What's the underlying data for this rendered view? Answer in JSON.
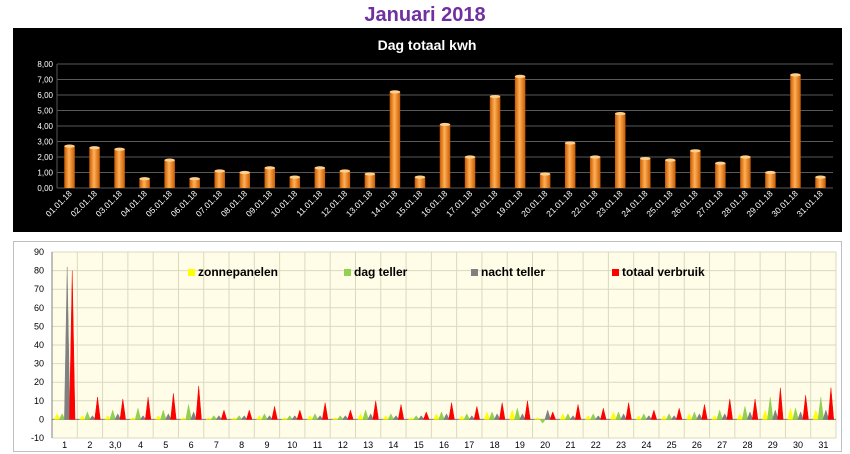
{
  "page": {
    "title": "Januari 2018"
  },
  "chart_data": [
    {
      "type": "bar",
      "title": "Dag totaal kwh",
      "categories": [
        "01.01.18",
        "02.01.18",
        "03.01.18",
        "04.01.18",
        "05.01.18",
        "06.01.18",
        "07.01.18",
        "08.01.18",
        "09.01.18",
        "10.01.18",
        "11.01.18",
        "12.01.18",
        "13.01.18",
        "14.01.18",
        "15.01.18",
        "16.01.18",
        "17.01.18",
        "18.01.18",
        "19.01.18",
        "20.01.18",
        "21.01.18",
        "22.01.18",
        "23.01.18",
        "24.01.18",
        "25.01.18",
        "26.01.18",
        "27.01.18",
        "28.01.18",
        "29.01.18",
        "30.01.18",
        "31.01.18"
      ],
      "values": [
        2.7,
        2.6,
        2.5,
        0.6,
        1.8,
        0.6,
        1.1,
        1.0,
        1.3,
        0.7,
        1.3,
        1.1,
        0.9,
        6.2,
        0.7,
        4.1,
        2.0,
        5.9,
        7.2,
        0.9,
        2.9,
        2.0,
        4.8,
        1.9,
        1.8,
        2.4,
        1.6,
        2.0,
        1.0,
        7.3,
        0.7
      ],
      "ylim": [
        0,
        8
      ],
      "yticks": [
        "0,00",
        "1,00",
        "2,00",
        "3,00",
        "4,00",
        "5,00",
        "6,00",
        "7,00",
        "8,00"
      ],
      "grid": true,
      "colors": {
        "bar": "#f28c28",
        "background": "#000000",
        "grid": "#595959",
        "text": "#ffffff"
      }
    },
    {
      "type": "area",
      "ylim": [
        -10,
        90
      ],
      "yticks": [
        "-10",
        "0",
        "10",
        "20",
        "30",
        "40",
        "50",
        "60",
        "70",
        "80",
        "90"
      ],
      "categories": [
        "1",
        "2",
        "3,0",
        "4",
        "5",
        "6",
        "7",
        "8",
        "9",
        "10",
        "11",
        "12",
        "13",
        "14",
        "15",
        "16",
        "17",
        "18",
        "19",
        "20",
        "21",
        "22",
        "23",
        "24",
        "25",
        "26",
        "27",
        "28",
        "29",
        "30",
        "31"
      ],
      "legend_position": "top",
      "series": [
        {
          "name": "zonnepanelen",
          "color": "#ffff00",
          "values": [
            3,
            2,
            2,
            1,
            2,
            1,
            1,
            1,
            2,
            1,
            2,
            1,
            3,
            2,
            1,
            3,
            2,
            4,
            5,
            1,
            3,
            2,
            4,
            2,
            2,
            3,
            2,
            3,
            5,
            6,
            5
          ]
        },
        {
          "name": "dag teller",
          "color": "#92d050",
          "values": [
            3,
            4,
            5,
            6,
            5,
            8,
            2,
            2,
            3,
            2,
            3,
            2,
            5,
            3,
            2,
            4,
            3,
            4,
            6,
            -2,
            3,
            3,
            4,
            3,
            3,
            4,
            5,
            7,
            12,
            6,
            12
          ]
        },
        {
          "name": "nacht teller",
          "color": "#808080",
          "values": [
            82,
            2,
            3,
            2,
            3,
            4,
            2,
            2,
            2,
            2,
            2,
            2,
            3,
            2,
            2,
            3,
            2,
            3,
            3,
            5,
            2,
            2,
            3,
            2,
            2,
            3,
            3,
            4,
            5,
            4,
            5
          ]
        },
        {
          "name": "totaal verbruik",
          "color": "#ff0000",
          "values": [
            80,
            12,
            11,
            12,
            14,
            18,
            5,
            5,
            7,
            5,
            9,
            5,
            10,
            8,
            4,
            9,
            7,
            9,
            10,
            4,
            8,
            6,
            9,
            5,
            6,
            8,
            11,
            11,
            17,
            13,
            17
          ]
        }
      ],
      "colors": {
        "background": "#fffde7",
        "grid": "#d9d9c0",
        "text": "#000000"
      }
    }
  ]
}
